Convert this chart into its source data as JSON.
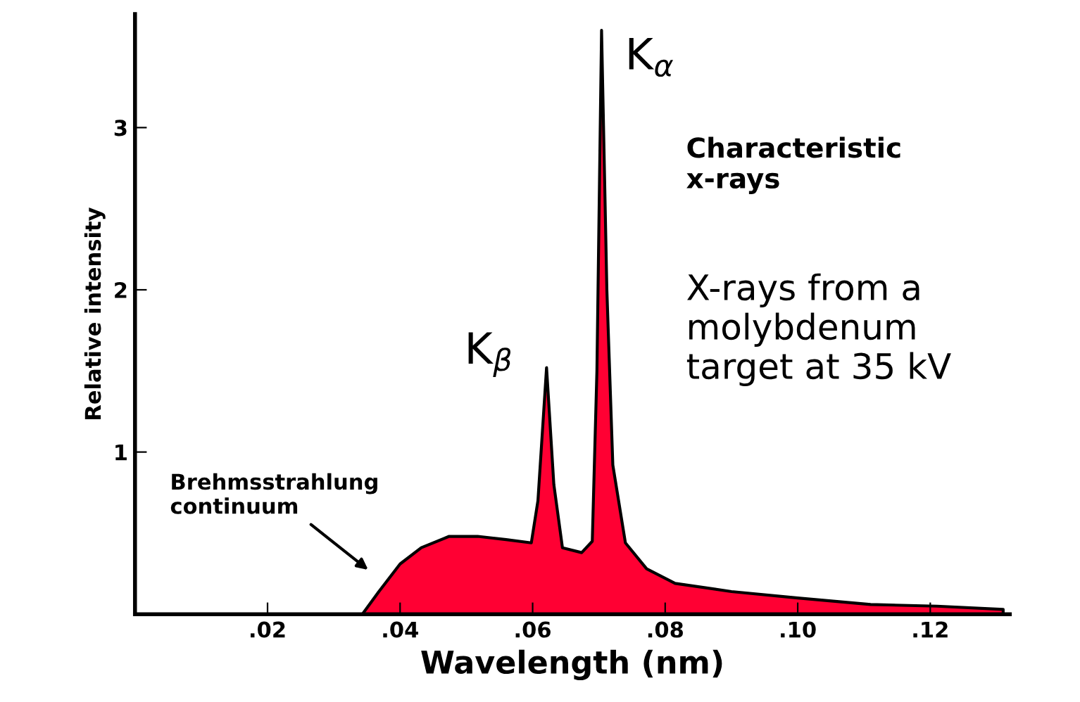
{
  "chart_data": {
    "type": "area",
    "xlabel": "Wavelength (nm)",
    "ylabel": "Relative intensity",
    "x": [
      0.0343,
      0.0368,
      0.04,
      0.0432,
      0.0474,
      0.0517,
      0.056,
      0.0598,
      0.0608,
      0.0621,
      0.0632,
      0.0645,
      0.0674,
      0.069,
      0.0697,
      0.0704,
      0.0712,
      0.0721,
      0.074,
      0.0772,
      0.0815,
      0.09,
      0.1,
      0.111,
      0.121,
      0.131
    ],
    "series": [
      {
        "color": "#ff0033",
        "values": [
          0,
          0.14,
          0.31,
          0.41,
          0.48,
          0.48,
          0.46,
          0.44,
          0.7,
          1.52,
          0.8,
          0.41,
          0.38,
          0.45,
          1.5,
          3.6,
          2.0,
          0.92,
          0.44,
          0.28,
          0.19,
          0.14,
          0.1,
          0.06,
          0.05,
          0.03
        ]
      }
    ],
    "xlim": [
      0,
      0.132
    ],
    "ylim": [
      0,
      3.7
    ],
    "xticks": [
      {
        "value": 0.02,
        "label": ".02"
      },
      {
        "value": 0.04,
        "label": ".04"
      },
      {
        "value": 0.06,
        "label": ".06"
      },
      {
        "value": 0.08,
        "label": ".08"
      },
      {
        "value": 0.1,
        "label": ".10"
      },
      {
        "value": 0.12,
        "label": ".12"
      }
    ],
    "yticks": [
      1,
      2,
      3
    ],
    "annotations": [
      {
        "text": "K$_{α}$",
        "x": 0.0704,
        "y": 3.6
      },
      {
        "text": "K$_{β}$",
        "x": 0.0621,
        "y": 1.52
      },
      "Brehmsstrahlung\ncontinuum",
      "Characteristic\nx-rays",
      "X-rays from a\nmolybdenum\ntarget at 35 kV"
    ],
    "grid": false,
    "legend": false
  }
}
